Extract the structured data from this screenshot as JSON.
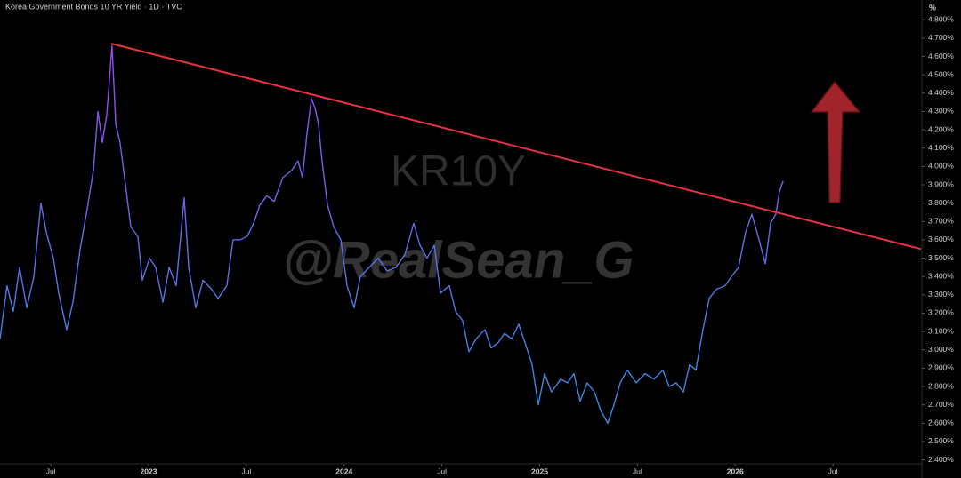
{
  "chart_data": {
    "type": "line",
    "title": "Korea Government Bonds 10 YR Yield · 1D · TVC",
    "watermark": "KR10Y",
    "annotation": "@RealSean_G",
    "y_unit": "%",
    "gradient_colors": [
      "#9b45f0",
      "#2b8fe0"
    ],
    "grid": false,
    "xlim": [
      2022.24,
      2026.95
    ],
    "ylim": [
      2.34,
      4.84
    ],
    "xticks": [
      {
        "value": 2022.5,
        "label": "Jul"
      },
      2023,
      {
        "value": 2023.5,
        "label": "Jul"
      },
      2024,
      {
        "value": 2024.5,
        "label": "Jul"
      },
      2025,
      {
        "value": 2025.5,
        "label": "Jul"
      },
      2026,
      {
        "value": 2026.5,
        "label": "Jul"
      }
    ],
    "yticks": [
      {
        "value": 2.4,
        "label": "2.400%"
      },
      {
        "value": 2.5,
        "label": "2.500%"
      },
      {
        "value": 2.6,
        "label": "2.600%"
      },
      {
        "value": 2.7,
        "label": "2.700%"
      },
      {
        "value": 2.8,
        "label": "2.800%"
      },
      {
        "value": 2.9,
        "label": "2.900%"
      },
      {
        "value": 3.0,
        "label": "3.000%"
      },
      {
        "value": 3.1,
        "label": "3.100%"
      },
      {
        "value": 3.2,
        "label": "3.200%"
      },
      {
        "value": 3.3,
        "label": "3.300%"
      },
      {
        "value": 3.4,
        "label": "3.400%"
      },
      {
        "value": 3.5,
        "label": "3.500%"
      },
      {
        "value": 3.6,
        "label": "3.600%"
      },
      {
        "value": 3.7,
        "label": "3.700%"
      },
      {
        "value": 3.8,
        "label": "3.800%"
      },
      {
        "value": 3.9,
        "label": "3.900%"
      },
      {
        "value": 4.0,
        "label": "4.000%"
      },
      {
        "value": 4.1,
        "label": "4.100%"
      },
      {
        "value": 4.2,
        "label": "4.200%"
      },
      {
        "value": 4.3,
        "label": "4.300%"
      },
      {
        "value": 4.4,
        "label": "4.400%"
      },
      {
        "value": 4.5,
        "label": "4.500%"
      },
      {
        "value": 4.6,
        "label": "4.600%"
      },
      {
        "value": 4.7,
        "label": "4.700%"
      },
      {
        "value": 4.8,
        "label": "4.800%"
      }
    ],
    "trendline": {
      "color": "#e5323f",
      "x": [
        2022.81,
        2026.95
      ],
      "y": [
        4.67,
        3.55
      ]
    },
    "x": [
      2022.24,
      2022.276,
      2022.308,
      2022.34,
      2022.377,
      2022.413,
      2022.449,
      2022.477,
      2022.513,
      2022.54,
      2022.581,
      2022.613,
      2022.65,
      2022.686,
      2022.718,
      2022.741,
      2022.763,
      2022.786,
      2022.813,
      2022.832,
      2022.854,
      2022.877,
      2022.909,
      2022.945,
      2022.968,
      2023.005,
      2023.036,
      2023.073,
      2023.105,
      2023.141,
      2023.182,
      2023.205,
      2023.241,
      2023.278,
      2023.323,
      2023.355,
      2023.4,
      2023.432,
      2023.469,
      2023.505,
      2023.537,
      2023.569,
      2023.605,
      2023.642,
      2023.687,
      2023.733,
      2023.764,
      2023.787,
      2023.81,
      2023.833,
      2023.851,
      2023.869,
      2023.887,
      2023.915,
      2023.947,
      2023.983,
      2024.015,
      2024.051,
      2024.083,
      2024.129,
      2024.174,
      2024.22,
      2024.265,
      2024.311,
      2024.356,
      2024.388,
      2024.424,
      2024.461,
      2024.493,
      2024.538,
      2024.57,
      2024.606,
      2024.638,
      2024.675,
      2024.72,
      2024.752,
      2024.788,
      2024.82,
      2024.857,
      2024.893,
      2024.925,
      2024.961,
      2024.993,
      2025.025,
      2025.061,
      2025.107,
      2025.143,
      2025.175,
      2025.207,
      2025.243,
      2025.28,
      2025.312,
      2025.348,
      2025.38,
      2025.412,
      2025.448,
      2025.494,
      2025.539,
      2025.585,
      2025.63,
      2025.662,
      2025.698,
      2025.735,
      2025.767,
      2025.799,
      2025.835,
      2025.867,
      2025.903,
      2025.949,
      2025.981,
      2026.017,
      2026.053,
      2026.085,
      2026.117,
      2026.154,
      2026.181,
      2026.208,
      2026.226,
      2026.245
    ],
    "values": [
      3.06,
      3.35,
      3.21,
      3.45,
      3.23,
      3.4,
      3.8,
      3.64,
      3.5,
      3.31,
      3.11,
      3.26,
      3.55,
      3.77,
      3.98,
      4.3,
      4.13,
      4.28,
      4.66,
      4.23,
      4.13,
      3.94,
      3.67,
      3.62,
      3.38,
      3.5,
      3.45,
      3.26,
      3.45,
      3.35,
      3.83,
      3.45,
      3.23,
      3.38,
      3.33,
      3.28,
      3.35,
      3.6,
      3.6,
      3.62,
      3.69,
      3.79,
      3.84,
      3.81,
      3.94,
      3.98,
      4.03,
      3.94,
      4.18,
      4.37,
      4.32,
      4.23,
      4.03,
      3.79,
      3.67,
      3.6,
      3.35,
      3.23,
      3.4,
      3.45,
      3.5,
      3.43,
      3.45,
      3.52,
      3.69,
      3.57,
      3.5,
      3.57,
      3.31,
      3.35,
      3.21,
      3.16,
      2.99,
      3.06,
      3.11,
      3.01,
      3.04,
      3.09,
      3.06,
      3.14,
      3.04,
      2.92,
      2.7,
      2.87,
      2.77,
      2.84,
      2.82,
      2.87,
      2.72,
      2.82,
      2.77,
      2.67,
      2.6,
      2.7,
      2.82,
      2.89,
      2.82,
      2.87,
      2.84,
      2.89,
      2.8,
      2.82,
      2.77,
      2.92,
      2.89,
      3.11,
      3.28,
      3.33,
      3.35,
      3.4,
      3.45,
      3.64,
      3.74,
      3.62,
      3.47,
      3.69,
      3.74,
      3.86,
      3.92
    ]
  }
}
